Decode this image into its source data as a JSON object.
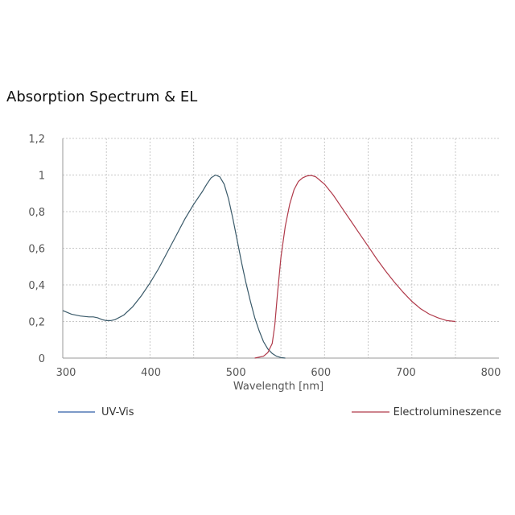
{
  "chart_data": {
    "type": "line",
    "title": "Absorption Spectrum & EL",
    "xlabel": "Wavelength [nm]",
    "ylabel": "",
    "xlim": [
      300,
      800
    ],
    "ylim": [
      0,
      1.2
    ],
    "x_ticks": [
      300,
      400,
      500,
      600,
      700,
      800
    ],
    "x_tick_labels": [
      "300",
      "400",
      "500",
      "600",
      "700",
      "800"
    ],
    "y_ticks": [
      0,
      0.2,
      0.4,
      0.6,
      0.8,
      1.0,
      1.2
    ],
    "y_tick_labels": [
      "0",
      "0,2",
      "0,4",
      "0,6",
      "0,8",
      "1",
      "1,2"
    ],
    "grid": true,
    "legend_position": "bottom",
    "series": [
      {
        "name": "UV-Vis",
        "color": "#3a5a6a",
        "legend_color": "#2d5ea8",
        "points": [
          [
            300,
            0.26
          ],
          [
            310,
            0.24
          ],
          [
            320,
            0.23
          ],
          [
            330,
            0.225
          ],
          [
            335,
            0.225
          ],
          [
            340,
            0.22
          ],
          [
            345,
            0.21
          ],
          [
            350,
            0.205
          ],
          [
            355,
            0.205
          ],
          [
            360,
            0.21
          ],
          [
            370,
            0.235
          ],
          [
            380,
            0.28
          ],
          [
            390,
            0.34
          ],
          [
            400,
            0.41
          ],
          [
            410,
            0.49
          ],
          [
            420,
            0.58
          ],
          [
            430,
            0.67
          ],
          [
            440,
            0.76
          ],
          [
            450,
            0.84
          ],
          [
            460,
            0.91
          ],
          [
            465,
            0.95
          ],
          [
            470,
            0.985
          ],
          [
            475,
            1.0
          ],
          [
            480,
            0.99
          ],
          [
            485,
            0.95
          ],
          [
            490,
            0.87
          ],
          [
            495,
            0.76
          ],
          [
            500,
            0.64
          ],
          [
            505,
            0.52
          ],
          [
            510,
            0.41
          ],
          [
            515,
            0.31
          ],
          [
            520,
            0.22
          ],
          [
            525,
            0.15
          ],
          [
            530,
            0.09
          ],
          [
            535,
            0.05
          ],
          [
            540,
            0.025
          ],
          [
            545,
            0.01
          ],
          [
            550,
            0.003
          ],
          [
            555,
            0.0
          ]
        ]
      },
      {
        "name": "Electrolumineszence",
        "color": "#b03a4a",
        "legend_color": "#b03a4a",
        "points": [
          [
            520,
            0.0
          ],
          [
            530,
            0.01
          ],
          [
            535,
            0.03
          ],
          [
            540,
            0.08
          ],
          [
            543,
            0.18
          ],
          [
            546,
            0.35
          ],
          [
            550,
            0.55
          ],
          [
            555,
            0.72
          ],
          [
            560,
            0.84
          ],
          [
            565,
            0.92
          ],
          [
            570,
            0.965
          ],
          [
            575,
            0.985
          ],
          [
            580,
            0.995
          ],
          [
            585,
            0.998
          ],
          [
            590,
            0.99
          ],
          [
            600,
            0.95
          ],
          [
            610,
            0.89
          ],
          [
            620,
            0.82
          ],
          [
            630,
            0.75
          ],
          [
            640,
            0.68
          ],
          [
            650,
            0.61
          ],
          [
            660,
            0.54
          ],
          [
            670,
            0.475
          ],
          [
            680,
            0.415
          ],
          [
            690,
            0.36
          ],
          [
            700,
            0.31
          ],
          [
            710,
            0.27
          ],
          [
            720,
            0.24
          ],
          [
            730,
            0.22
          ],
          [
            740,
            0.205
          ],
          [
            750,
            0.2
          ]
        ]
      }
    ]
  }
}
